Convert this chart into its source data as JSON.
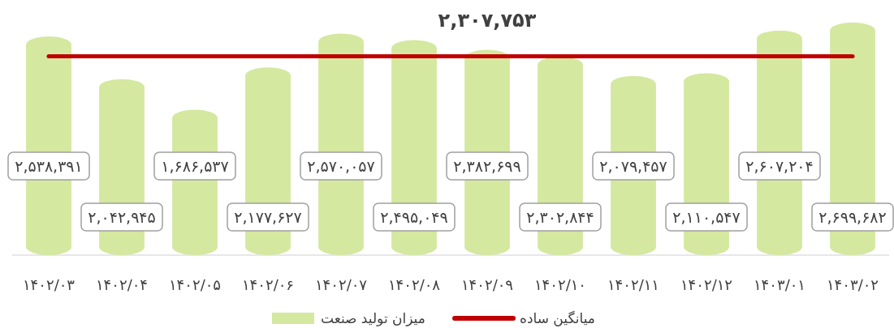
{
  "chart_data": {
    "type": "bar",
    "categories": [
      "۱۴۰۲/۰۳",
      "۱۴۰۲/۰۴",
      "۱۴۰۲/۰۵",
      "۱۴۰۲/۰۶",
      "۱۴۰۲/۰۷",
      "۱۴۰۲/۰۸",
      "۱۴۰۲/۰۹",
      "۱۴۰۲/۱۰",
      "۱۴۰۲/۱۱",
      "۱۴۰۲/۱۲",
      "۱۴۰۳/۰۱",
      "۱۴۰۳/۰۲"
    ],
    "tick_labels": "x",
    "legend": "bottom",
    "series": [
      {
        "name": "میزان تولید صنعت",
        "color": "#d4e8a0",
        "values": [
          2538391,
          2042945,
          1686537,
          2177627,
          2570057,
          2495049,
          2382699,
          2302844,
          2079457,
          2110547,
          2607204,
          2699682
        ],
        "value_labels": [
          "۲,۵۳۸,۳۹۱",
          "۲,۰۴۲,۹۴۵",
          "۱,۶۸۶,۵۳۷",
          "۲,۱۷۷,۶۲۷",
          "۲,۵۷۰,۰۵۷",
          "۲,۴۹۵,۰۴۹",
          "۲,۳۸۲,۶۹۹",
          "۲,۳۰۲,۸۴۴",
          "۲,۰۷۹,۴۵۷",
          "۲,۱۱۰,۵۴۷",
          "۲,۶۰۷,۲۰۴",
          "۲,۶۹۹,۶۸۲"
        ]
      },
      {
        "name": "میانگین ساده",
        "type": "line",
        "color": "#c00000",
        "values": [
          2307753,
          2307753,
          2307753,
          2307753,
          2307753,
          2307753,
          2307753,
          2307753,
          2307753,
          2307753,
          2307753,
          2307753
        ],
        "value_labels": [
          null,
          null,
          null,
          null,
          null,
          null,
          "۲,۳۰۷,۷۵۳",
          null,
          null,
          null,
          null,
          null
        ]
      }
    ]
  }
}
